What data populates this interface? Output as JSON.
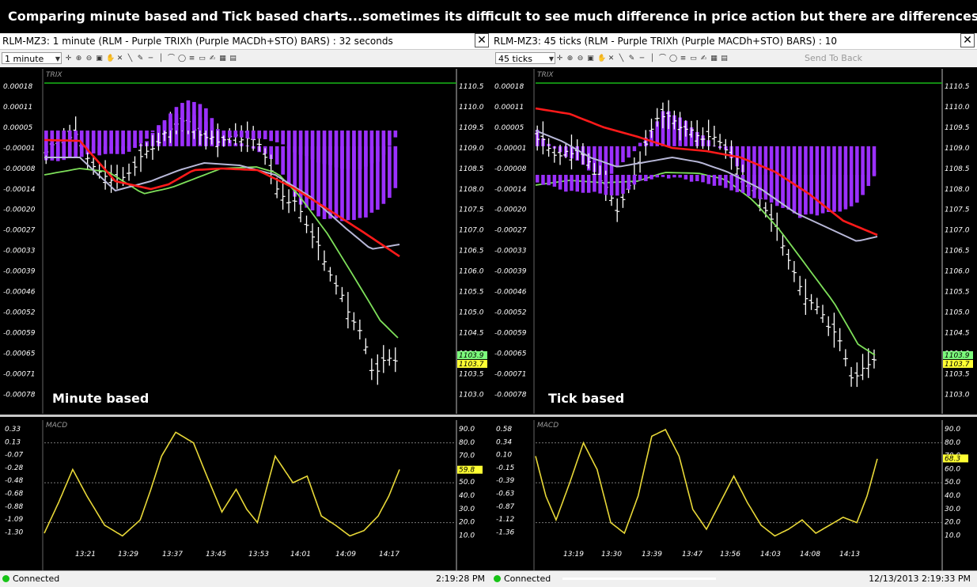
{
  "banner_text": "Comparing minute based and Tick based charts...sometimes its difficult to see much  difference in price action but there are differences in the indicators",
  "windows": [
    {
      "title": "RLM-MZ3: 1 minute (RLM - Purple TRIXh (Purple MACDh+STO) BARS) : 32 seconds",
      "interval": "1 minute",
      "send_to_back": "",
      "panel_label": "Minute based",
      "trix_label": "TRIX",
      "macd_label": "MACD",
      "trix_left_ticks": [
        "0.00018",
        "0.00011",
        "0.00005",
        "-0.00001",
        "-0.00008",
        "-0.00014",
        "-0.00020",
        "-0.00027",
        "-0.00033",
        "-0.00039",
        "-0.00046",
        "-0.00052",
        "-0.00059",
        "-0.00065",
        "-0.00071",
        "-0.00078"
      ],
      "price_ticks": [
        "1110.5",
        "1110.0",
        "1109.5",
        "1109.0",
        "1108.5",
        "1108.0",
        "1107.5",
        "1107.0",
        "1106.5",
        "1106.0",
        "1105.5",
        "1105.0",
        "1104.5",
        "1104.0",
        "1103.5",
        "1103.0"
      ],
      "price_badge_green": "1103.9",
      "price_badge_yellow": "1103.7",
      "macd_left_ticks": [
        "0.33",
        "0.13",
        "-0.07",
        "-0.28",
        "-0.48",
        "-0.68",
        "-0.88",
        "-1.09",
        "-1.30"
      ],
      "sto_ticks": [
        "90.0",
        "80.0",
        "70.0",
        "60.0",
        "50.0",
        "40.0",
        "30.0",
        "20.0",
        "10.0"
      ],
      "sto_badge": "59.8",
      "time_ticks": [
        "13:21",
        "13:29",
        "13:37",
        "13:45",
        "13:53",
        "14:01",
        "14:09",
        "14:17"
      ],
      "status_connected": "Connected",
      "status_time": "2:19:28 PM"
    },
    {
      "title": "RLM-MZ3: 45 ticks (RLM - Purple TRIXh (Purple MACDh+STO) BARS) : 10",
      "interval": "45 ticks",
      "send_to_back": "Send To Back",
      "panel_label": "Tick based",
      "trix_label": "TRIX",
      "macd_label": "MACD",
      "trix_left_ticks": [
        "0.00018",
        "0.00011",
        "0.00005",
        "-0.00001",
        "-0.00008",
        "-0.00014",
        "-0.00020",
        "-0.00027",
        "-0.00033",
        "-0.00039",
        "-0.00046",
        "-0.00052",
        "-0.00059",
        "-0.00065",
        "-0.00071",
        "-0.00078"
      ],
      "price_ticks": [
        "1110.5",
        "1110.0",
        "1109.5",
        "1109.0",
        "1108.5",
        "1108.0",
        "1107.5",
        "1107.0",
        "1106.5",
        "1106.0",
        "1105.5",
        "1105.0",
        "1104.5",
        "1104.0",
        "1103.5",
        "1103.0"
      ],
      "price_badge_green": "1103.9",
      "price_badge_yellow": "1103.7",
      "macd_left_ticks": [
        "0.58",
        "0.34",
        "0.10",
        "-0.15",
        "-0.39",
        "-0.63",
        "-0.87",
        "-1.12",
        "-1.36"
      ],
      "sto_ticks": [
        "90.0",
        "80.0",
        "70.0",
        "60.0",
        "50.0",
        "40.0",
        "30.0",
        "20.0",
        "10.0"
      ],
      "sto_badge": "68.3",
      "time_ticks": [
        "13:19",
        "13:30",
        "13:39",
        "13:47",
        "13:56",
        "14:03",
        "14:08",
        "14:13"
      ],
      "status_connected": "Connected",
      "status_time": "12/13/2013 2:19:33 PM"
    }
  ],
  "colors": {
    "histogram": "#9b30ff",
    "trix_signal": "#7ee05a",
    "macd_line": "#ff1a1a",
    "macd_signal": "#b8b8d8",
    "stochastic": "#e8d838",
    "bars": "#ffffff",
    "zero_line": "#18b818",
    "badge_green": "#7cfc7c",
    "badge_yellow": "#ffff33"
  },
  "chart_data": [
    {
      "type": "line",
      "panel": "Minute based - price bars",
      "x": [
        "13:21",
        "13:29",
        "13:37",
        "13:45",
        "13:53",
        "14:01",
        "14:09",
        "14:17"
      ],
      "series": [
        {
          "values": [
            1109.1,
            1108.3,
            1109.5,
            1109.3,
            1108.7,
            1106.0,
            1104.3,
            1103.8
          ]
        }
      ],
      "ylim": [
        1103.0,
        1110.5
      ]
    },
    {
      "type": "line",
      "panel": "Tick based - price bars",
      "x": [
        "13:19",
        "13:30",
        "13:39",
        "13:47",
        "13:56",
        "14:03",
        "14:08",
        "14:13"
      ],
      "series": [
        {
          "values": [
            1109.0,
            1107.8,
            1109.6,
            1109.2,
            1108.0,
            1105.7,
            1104.4,
            1103.8
          ]
        }
      ],
      "ylim": [
        1103.0,
        1110.5
      ]
    }
  ]
}
